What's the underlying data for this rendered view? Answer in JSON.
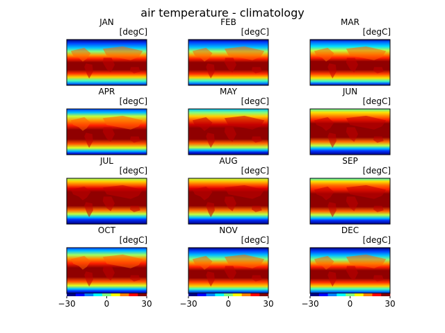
{
  "chart_data": {
    "type": "heatmap",
    "title": "air temperature - climatology",
    "units": "[degC]",
    "colormap": "jet",
    "color_range": [
      -30,
      30
    ],
    "colorbar_ticks": [
      "−30",
      "0",
      "30"
    ],
    "panels": [
      {
        "label": "JAN",
        "units": "[degC]",
        "colorbar": false
      },
      {
        "label": "FEB",
        "units": "[degC]",
        "colorbar": false
      },
      {
        "label": "MAR",
        "units": "[degC]",
        "colorbar": false
      },
      {
        "label": "APR",
        "units": "[degC]",
        "colorbar": false
      },
      {
        "label": "MAY",
        "units": "[degC]",
        "colorbar": false
      },
      {
        "label": "JUN",
        "units": "[degC]",
        "colorbar": false
      },
      {
        "label": "JUL",
        "units": "[degC]",
        "colorbar": false
      },
      {
        "label": "AUG",
        "units": "[degC]",
        "colorbar": false
      },
      {
        "label": "SEP",
        "units": "[degC]",
        "colorbar": false
      },
      {
        "label": "OCT",
        "units": "[degC]",
        "colorbar": true
      },
      {
        "label": "NOV",
        "units": "[degC]",
        "colorbar": true
      },
      {
        "label": "DEC",
        "units": "[degC]",
        "colorbar": true
      }
    ]
  }
}
